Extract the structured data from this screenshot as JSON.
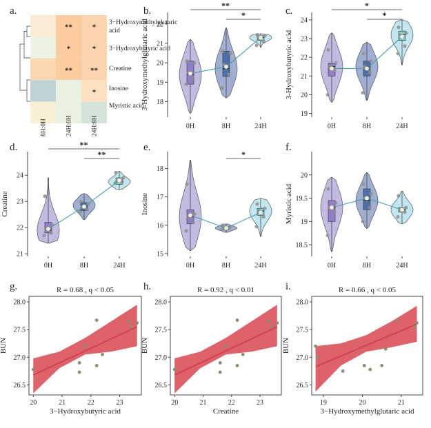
{
  "panel_labels": [
    "a.",
    "b.",
    "c.",
    "d.",
    "e.",
    "f.",
    "g.",
    "h.",
    "i."
  ],
  "colors": {
    "heat_orange": "#fbd0a8",
    "heat_pale_orange": "#fde4c5",
    "heat_pale_green": "#e7f0df",
    "heat_blue_gray": "#c2d4d4",
    "heat_pale_yellow": "#faf0d2",
    "violin_0h": "#b8aedc",
    "violin_8h": "#8fa0c9",
    "violin_24h": "#b8e3ee",
    "box_0h": "#8f7fc6",
    "box_8h": "#4f6fa8",
    "box_24h": "#7fc9cf",
    "mean_line": "#4aa0a6",
    "mean_dot": "#f4f0d8",
    "reg_line": "#cf3b45",
    "reg_band": "#d9515a",
    "scatter_point": "#8a8f73"
  },
  "chart_data": [
    {
      "panel": "a.",
      "type": "heatmap",
      "rows": [
        "3-Hydroxymethylglutaric acid",
        "3-Hydroxybutyric acid",
        "Creatine",
        "Inosine",
        "Myristic acid"
      ],
      "columns": [
        "8H:0H",
        "24H:0H",
        "24H:8H"
      ],
      "cell_colors": [
        [
          "#faecd6",
          "#fbcc9f",
          "#fbd3ac"
        ],
        [
          "#ecf3e4",
          "#fbcc9f",
          "#fbd3ac"
        ],
        [
          "#fcd8b2",
          "#fbcc9f",
          "#fbd3ac"
        ],
        [
          "#bfd3d6",
          "#e9f2e2",
          "#fde0c0"
        ],
        [
          "#f9efd6",
          "#e9f2e2",
          "#d5e4d9"
        ]
      ],
      "stars": [
        [
          "",
          "**",
          "*"
        ],
        [
          "",
          "*",
          "*"
        ],
        [
          "",
          "**",
          "**"
        ],
        [
          "",
          "",
          "*"
        ],
        [
          "",
          "",
          ""
        ]
      ]
    },
    {
      "panel": "b.",
      "type": "violin",
      "ylabel": "3-Hydroxymethylglutaric acid",
      "categories": [
        "0H",
        "8H",
        "24H"
      ],
      "yticks": [
        18,
        19,
        20,
        21,
        22
      ],
      "ylim": [
        17.2,
        22.6
      ],
      "groups": [
        {
          "min": 17.4,
          "q1": 18.9,
          "median": 19.4,
          "q3": 20.1,
          "max": 21.2,
          "mean": 19.45,
          "points": [
            18.9,
            19.2,
            19.5,
            20.0,
            20.1
          ]
        },
        {
          "min": 18.2,
          "q1": 19.3,
          "median": 19.7,
          "q3": 20.6,
          "max": 21.8,
          "mean": 19.8,
          "points": [
            18.7,
            19.4,
            19.9,
            20.5,
            20.6
          ]
        },
        {
          "min": 20.8,
          "q1": 21.15,
          "median": 21.3,
          "q3": 21.4,
          "max": 21.5,
          "mean": 21.3,
          "points": [
            20.9,
            21.1,
            21.3,
            21.4,
            21.45
          ]
        }
      ],
      "significance": [
        {
          "from": "0H",
          "to": "24H",
          "label": "**"
        },
        {
          "from": "8H",
          "to": "24H",
          "label": "*"
        }
      ]
    },
    {
      "panel": "c.",
      "type": "violin",
      "ylabel": "3-Hydroxybutyric acid",
      "categories": [
        "0H",
        "8H",
        "24H"
      ],
      "yticks": [
        19,
        20,
        21,
        22,
        23,
        24
      ],
      "ylim": [
        18.8,
        24.4
      ],
      "groups": [
        {
          "min": 19.6,
          "q1": 21.0,
          "median": 21.5,
          "q3": 21.7,
          "max": 23.3,
          "mean": 21.4,
          "points": [
            20.0,
            21.3,
            21.5,
            21.7,
            22.4
          ]
        },
        {
          "min": 19.7,
          "q1": 21.0,
          "median": 21.5,
          "q3": 21.8,
          "max": 22.8,
          "mean": 21.4,
          "points": [
            20.1,
            21.2,
            21.5,
            21.8,
            22.2
          ]
        },
        {
          "min": 21.6,
          "q1": 22.9,
          "median": 23.2,
          "q3": 23.4,
          "max": 24.0,
          "mean": 23.1,
          "points": [
            22.2,
            22.6,
            23.2,
            23.3,
            23.6
          ]
        }
      ],
      "significance": [
        {
          "from": "0H",
          "to": "24H",
          "label": "*"
        },
        {
          "from": "8H",
          "to": "24H",
          "label": "*"
        }
      ]
    },
    {
      "panel": "d.",
      "type": "violin",
      "ylabel": "Creatine",
      "categories": [
        "0H",
        "8H",
        "24H"
      ],
      "yticks": [
        21,
        22,
        23,
        24
      ],
      "ylim": [
        20.9,
        24.9
      ],
      "groups": [
        {
          "min": 21.4,
          "q1": 21.8,
          "median": 21.9,
          "q3": 22.2,
          "max": 23.9,
          "mean": 21.95,
          "points": [
            21.7,
            21.8,
            21.9,
            22.1,
            23.2
          ]
        },
        {
          "min": 22.3,
          "q1": 22.65,
          "median": 22.85,
          "q3": 22.95,
          "max": 23.3,
          "mean": 22.8,
          "points": [
            22.6,
            22.7,
            22.8,
            22.9,
            23.0
          ]
        },
        {
          "min": 23.45,
          "q1": 23.65,
          "median": 23.75,
          "q3": 23.9,
          "max": 24.15,
          "mean": 23.8,
          "points": [
            23.7,
            23.75,
            23.8,
            23.9,
            24.1
          ]
        }
      ],
      "significance": [
        {
          "from": "0H",
          "to": "24H",
          "label": "**"
        },
        {
          "from": "8H",
          "to": "24H",
          "label": "**"
        }
      ]
    },
    {
      "panel": "e.",
      "type": "violin",
      "ylabel": "Inosine",
      "categories": [
        "0H",
        "8H",
        "24H"
      ],
      "yticks": [
        15,
        16,
        17,
        18
      ],
      "ylim": [
        14.9,
        18.6
      ],
      "groups": [
        {
          "min": 15.1,
          "q1": 16.05,
          "median": 16.3,
          "q3": 16.55,
          "max": 18.3,
          "mean": 16.35,
          "points": [
            15.8,
            16.1,
            16.3,
            16.4,
            17.45
          ]
        },
        {
          "min": 15.75,
          "q1": 15.85,
          "median": 15.9,
          "q3": 15.95,
          "max": 16.05,
          "mean": 15.9,
          "points": [
            15.85,
            15.9,
            15.92,
            15.95,
            16.0
          ]
        },
        {
          "min": 15.6,
          "q1": 16.35,
          "median": 16.5,
          "q3": 16.6,
          "max": 16.95,
          "mean": 16.45,
          "points": [
            15.95,
            16.3,
            16.5,
            16.6,
            16.75
          ]
        }
      ],
      "significance": [
        {
          "from": "8H",
          "to": "24H",
          "label": "*"
        }
      ]
    },
    {
      "panel": "f.",
      "type": "violin",
      "ylabel": "Myristic acid",
      "categories": [
        "0H",
        "8H",
        "24H"
      ],
      "yticks": [
        18.5,
        19.0,
        19.5,
        20.0
      ],
      "ylim": [
        18.25,
        20.5
      ],
      "groups": [
        {
          "min": 18.35,
          "q1": 19.0,
          "median": 19.3,
          "q3": 19.45,
          "max": 19.95,
          "mean": 19.3,
          "points": [
            18.7,
            19.2,
            19.3,
            19.4,
            19.7
          ]
        },
        {
          "min": 18.85,
          "q1": 19.25,
          "median": 19.45,
          "q3": 19.7,
          "max": 20.05,
          "mean": 19.5,
          "points": [
            19.0,
            19.3,
            19.5,
            19.6,
            19.8
          ]
        },
        {
          "min": 18.95,
          "q1": 19.2,
          "median": 19.25,
          "q3": 19.3,
          "max": 19.65,
          "mean": 19.25,
          "points": [
            19.1,
            19.2,
            19.25,
            19.3,
            19.55
          ]
        }
      ],
      "significance": []
    },
    {
      "panel": "g.",
      "type": "scatter",
      "title": "R = 0.68 , q < 0.05",
      "xlabel": "3−Hydroxybutyric acid",
      "ylabel": "BUN",
      "xticks": [
        20,
        21,
        22,
        23
      ],
      "yticks": [
        26.5,
        27.0,
        27.5,
        28.0
      ],
      "xlim": [
        19.85,
        23.75
      ],
      "ylim": [
        26.32,
        28.1
      ],
      "points": [
        [
          20.0,
          26.78
        ],
        [
          21.6,
          26.73
        ],
        [
          21.6,
          26.9
        ],
        [
          21.8,
          27.2
        ],
        [
          22.2,
          27.67
        ],
        [
          22.2,
          26.85
        ],
        [
          22.4,
          27.05
        ],
        [
          23.3,
          27.65
        ],
        [
          23.4,
          27.55
        ],
        [
          23.6,
          27.62
        ]
      ],
      "fit": {
        "x": [
          20.0,
          23.6
        ],
        "y": [
          26.68,
          27.55
        ]
      },
      "band_lower": [
        26.35,
        26.8,
        27.05,
        27.1,
        27.2
      ],
      "band_upper": [
        26.98,
        27.1,
        27.35,
        27.65,
        27.95
      ]
    },
    {
      "panel": "h.",
      "type": "scatter",
      "title": "R = 0.92 , q < 0.01",
      "xlabel": "Creatine",
      "ylabel": "BUN",
      "xticks": [
        20,
        21,
        22,
        23
      ],
      "yticks": [
        26.5,
        27.0,
        27.5,
        28.0
      ],
      "xlim": [
        19.85,
        23.75
      ],
      "ylim": [
        26.32,
        28.1
      ],
      "points": [
        [
          20.0,
          26.78
        ],
        [
          21.6,
          26.73
        ],
        [
          21.6,
          26.9
        ],
        [
          21.8,
          27.2
        ],
        [
          22.2,
          27.67
        ],
        [
          22.2,
          26.85
        ],
        [
          22.4,
          27.05
        ],
        [
          23.3,
          27.65
        ],
        [
          23.4,
          27.55
        ],
        [
          23.6,
          27.62
        ]
      ],
      "fit": {
        "x": [
          20.0,
          23.6
        ],
        "y": [
          26.68,
          27.55
        ]
      },
      "band_lower": [
        26.35,
        26.8,
        27.05,
        27.1,
        27.2
      ],
      "band_upper": [
        26.98,
        27.1,
        27.35,
        27.65,
        27.95
      ]
    },
    {
      "panel": "i.",
      "type": "scatter",
      "title": "R = 0.66 , q < 0.05",
      "xlabel": "3−Hydroxymethylglutaric acid",
      "ylabel": "BUN",
      "xticks": [
        19,
        20,
        21
      ],
      "yticks": [
        26.5,
        27.0,
        27.5,
        28.0
      ],
      "xlim": [
        18.7,
        21.55
      ],
      "ylim": [
        26.32,
        28.1
      ],
      "points": [
        [
          18.8,
          27.2
        ],
        [
          18.85,
          27.0
        ],
        [
          19.5,
          26.75
        ],
        [
          20.05,
          26.85
        ],
        [
          20.2,
          26.78
        ],
        [
          20.5,
          26.85
        ],
        [
          20.6,
          27.15
        ],
        [
          20.9,
          27.67
        ],
        [
          21.35,
          27.55
        ],
        [
          21.4,
          27.62
        ]
      ],
      "fit": {
        "x": [
          18.8,
          21.4
        ],
        "y": [
          26.83,
          27.6
        ]
      },
      "band_lower": [
        26.38,
        26.85,
        27.1,
        27.18,
        27.28
      ],
      "band_upper": [
        27.2,
        27.25,
        27.4,
        27.65,
        27.93
      ]
    }
  ]
}
